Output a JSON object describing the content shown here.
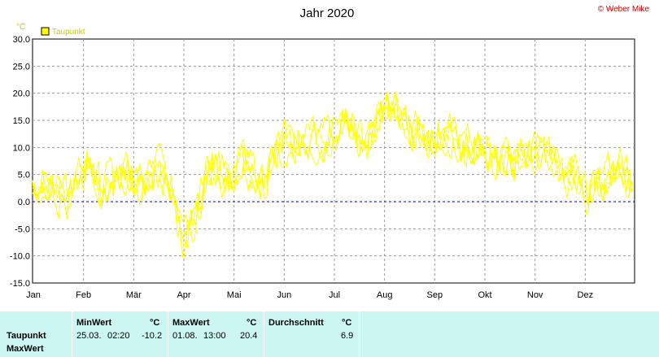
{
  "header": {
    "title": "Jahr 2020",
    "copyright": "© Weber Mike"
  },
  "chart_data": {
    "type": "line",
    "unit_label": "°C",
    "ylim": [
      -15,
      30
    ],
    "yticks": [
      "30.0",
      "25.0",
      "20.0",
      "15.0",
      "10.0",
      "5.0",
      "0.0",
      "-5.0",
      "-10.0",
      "-15.0"
    ],
    "months": [
      "Jan",
      "Feb",
      "Mär",
      "Apr",
      "Mai",
      "Jun",
      "Jul",
      "Aug",
      "Sep",
      "Okt",
      "Nov",
      "Dez"
    ],
    "grid": true,
    "zero_line": true,
    "legend_position": "top-left",
    "colors": {
      "series": "#ffff00",
      "grid": "#999999",
      "zero": "#0000cc",
      "ytick_labels": "#cccc00"
    },
    "series": [
      {
        "name": "Taupunkt",
        "days": [
          1,
          8,
          15,
          22,
          29,
          36,
          43,
          50,
          57,
          64,
          71,
          78,
          85,
          92,
          99,
          106,
          113,
          120,
          127,
          134,
          141,
          148,
          155,
          162,
          169,
          176,
          183,
          190,
          197,
          204,
          211,
          218,
          225,
          232,
          239,
          246,
          253,
          260,
          267,
          274,
          281,
          288,
          295,
          302,
          309,
          316,
          323,
          330,
          337,
          344,
          351,
          358,
          365
        ],
        "values": [
          1.5,
          5.0,
          3.0,
          0.5,
          4.5,
          8.0,
          2.5,
          4.0,
          5.5,
          3.0,
          4.5,
          6.0,
          3.5,
          -8.0,
          -3.0,
          5.5,
          7.0,
          4.0,
          7.5,
          6.0,
          3.5,
          8.5,
          11.0,
          10.0,
          12.0,
          10.5,
          13.5,
          14.0,
          12.0,
          11.5,
          15.0,
          17.0,
          16.0,
          13.5,
          12.5,
          12.0,
          13.0,
          11.0,
          9.5,
          10.0,
          8.5,
          9.0,
          7.0,
          8.5,
          9.5,
          8.0,
          4.0,
          6.5,
          1.5,
          2.5,
          5.0,
          7.0,
          3.0
        ]
      }
    ]
  },
  "stats": {
    "row_label_1": "Taupunkt",
    "row_label_2": "MaxWert",
    "min_header": "MinWert",
    "min_unit": "°C",
    "min_date": "25.03.",
    "min_time": "02:20",
    "min_value": "-10.2",
    "max_header": "MaxWert",
    "max_unit": "°C",
    "max_date": "01.08.",
    "max_time": "13:00",
    "max_value": "20.4",
    "avg_header": "Durchschnitt",
    "avg_unit": "°C",
    "avg_value": "6.9"
  }
}
